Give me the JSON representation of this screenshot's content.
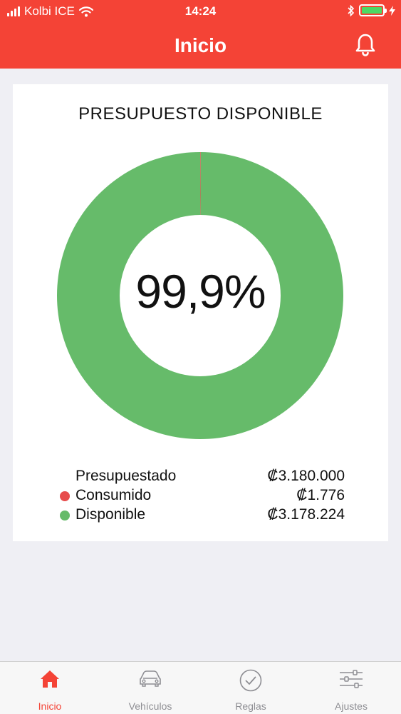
{
  "status_bar": {
    "carrier": "Kolbi ICE",
    "time": "14:24"
  },
  "header": {
    "title": "Inicio"
  },
  "card": {
    "title": "PRESUPUESTO DISPONIBLE",
    "center_label": "99,9%"
  },
  "chart_data": {
    "type": "pie",
    "categories": [
      "Consumido",
      "Disponible"
    ],
    "values": [
      1776,
      3178224
    ],
    "colors": [
      "#e74c4c",
      "#66bb6a"
    ]
  },
  "legend": [
    {
      "label": "Presupuestado",
      "value": "₡3.180.000",
      "color": ""
    },
    {
      "label": "Consumido",
      "value": "₡1.776",
      "color": "#e74c4c"
    },
    {
      "label": "Disponible",
      "value": "₡3.178.224",
      "color": "#66bb6a"
    }
  ],
  "tabs": [
    {
      "label": "Inicio",
      "icon": "home-icon",
      "active": true
    },
    {
      "label": "Vehículos",
      "icon": "car-icon",
      "active": false
    },
    {
      "label": "Reglas",
      "icon": "check-circle-icon",
      "active": false
    },
    {
      "label": "Ajustes",
      "icon": "sliders-icon",
      "active": false
    }
  ],
  "colors": {
    "accent": "#f44336",
    "tab_inactive": "#8e8e93"
  }
}
